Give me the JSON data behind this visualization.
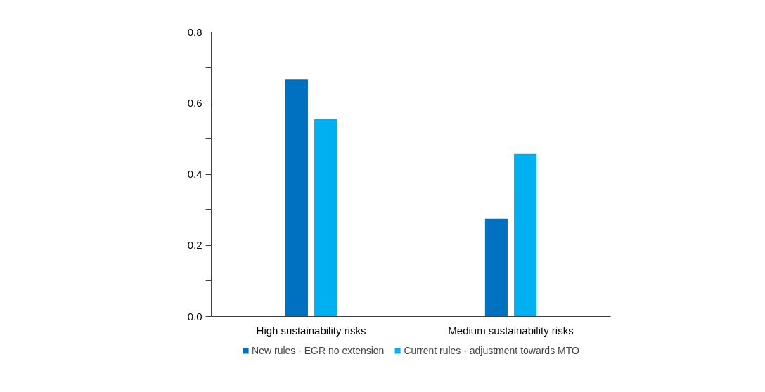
{
  "chart_data": {
    "type": "bar",
    "categories": [
      "High sustainability risks",
      "Medium sustainability risks"
    ],
    "series": [
      {
        "name": "New rules - EGR no extension",
        "color": "#0070c0",
        "values": [
          0.666,
          0.274
        ]
      },
      {
        "name": "Current rules - adjustment towards MTO",
        "color": "#00b0f0",
        "values": [
          0.555,
          0.458
        ]
      }
    ],
    "ylim": [
      0,
      0.8
    ],
    "yticks": [
      {
        "value": 0,
        "label": "0.0"
      },
      {
        "value": 0.1,
        "label": null
      },
      0.2,
      {
        "value": 0.3,
        "label": null
      },
      0.4,
      {
        "value": 0.5,
        "label": null
      },
      0.6,
      {
        "value": 0.7,
        "label": null
      },
      0.8
    ],
    "grid": false,
    "legend": "bottom"
  }
}
